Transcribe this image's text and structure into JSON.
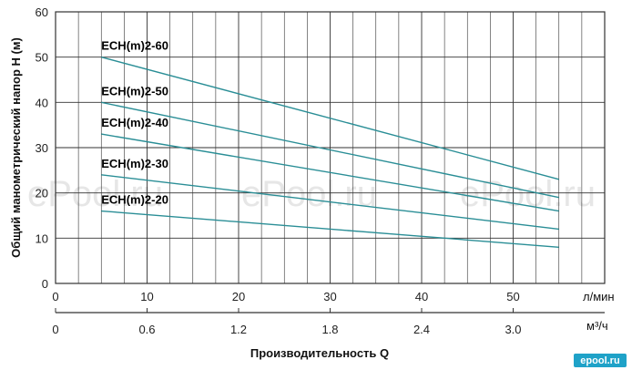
{
  "chart_data": {
    "type": "line",
    "ylabel": "Общий манометрический напор Н (м)",
    "xlabel": "Производительность Q",
    "ylim": [
      0,
      60
    ],
    "yticks": [
      0,
      10,
      20,
      30,
      40,
      50,
      60
    ],
    "xlim": [
      0,
      60
    ],
    "xticks_lmin": [
      0,
      10,
      20,
      30,
      40,
      50
    ],
    "xunit_lmin": "л/мин",
    "xticks_m3h_labels": [
      "0",
      "0.6",
      "1.2",
      "1.8",
      "2.4",
      "3.0"
    ],
    "xunit_m3h": "м³/ч",
    "grid": true,
    "series": [
      {
        "name": "ECH(m)2-60",
        "x": [
          5,
          55
        ],
        "y": [
          50,
          23
        ],
        "color": "#2a8e96"
      },
      {
        "name": "ECH(m)2-50",
        "x": [
          5,
          55
        ],
        "y": [
          40,
          19
        ],
        "color": "#2a8e96"
      },
      {
        "name": "ECH(m)2-40",
        "x": [
          5,
          55
        ],
        "y": [
          33,
          16
        ],
        "color": "#2a8e96"
      },
      {
        "name": "ECH(m)2-30",
        "x": [
          5,
          55
        ],
        "y": [
          24,
          12
        ],
        "color": "#2a8e96"
      },
      {
        "name": "ECH(m)2-20",
        "x": [
          5,
          55
        ],
        "y": [
          16,
          8
        ],
        "color": "#2a8e96"
      }
    ]
  },
  "watermark": "ePool.ru",
  "logo": "epool.ru"
}
